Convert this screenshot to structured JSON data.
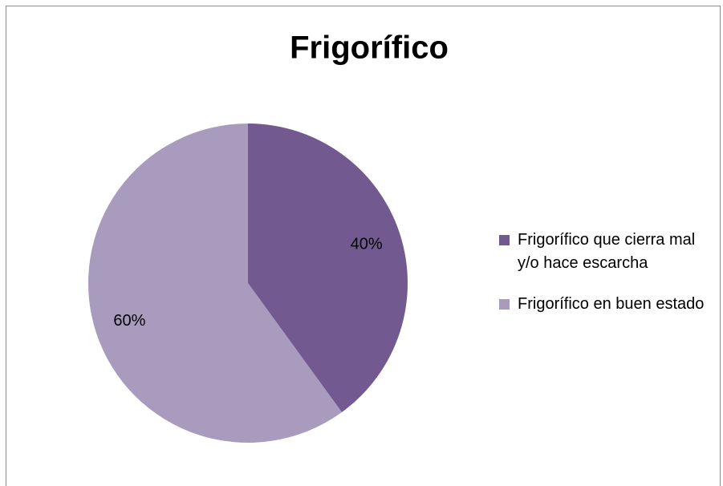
{
  "chart_data": {
    "type": "pie",
    "title": "Frigorífico",
    "categories": [
      "Frigorífico que cierra mal y/o hace escarcha",
      "Frigorífico en buen estado"
    ],
    "values": [
      40,
      60
    ],
    "value_labels": [
      "40%",
      "60%"
    ],
    "colors": [
      "#725990",
      "#a99bbd"
    ],
    "legend": "right"
  }
}
